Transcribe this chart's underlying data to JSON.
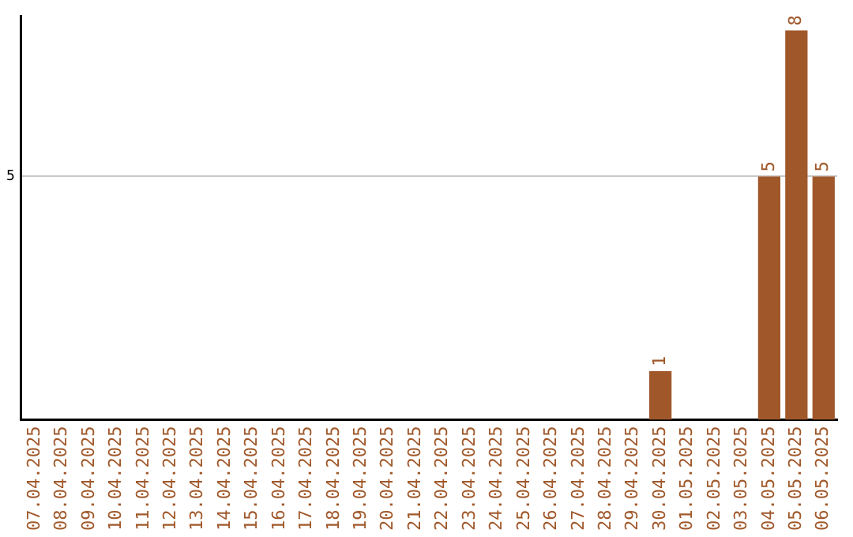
{
  "chart_data": {
    "type": "bar",
    "categories": [
      "07.04.2025",
      "08.04.2025",
      "09.04.2025",
      "10.04.2025",
      "11.04.2025",
      "12.04.2025",
      "13.04.2025",
      "14.04.2025",
      "15.04.2025",
      "16.04.2025",
      "17.04.2025",
      "18.04.2025",
      "19.04.2025",
      "20.04.2025",
      "21.04.2025",
      "22.04.2025",
      "23.04.2025",
      "24.04.2025",
      "25.04.2025",
      "26.04.2025",
      "27.04.2025",
      "28.04.2025",
      "29.04.2025",
      "30.04.2025",
      "01.05.2025",
      "02.05.2025",
      "03.05.2025",
      "04.05.2025",
      "05.05.2025",
      "06.05.2025"
    ],
    "values": [
      null,
      null,
      null,
      null,
      null,
      null,
      null,
      null,
      null,
      null,
      null,
      null,
      null,
      null,
      null,
      null,
      null,
      null,
      null,
      null,
      null,
      null,
      null,
      1,
      null,
      null,
      null,
      5,
      8,
      5
    ],
    "color": "#a0582a",
    "ylim": [
      0,
      8.3
    ],
    "yticks": [
      5
    ],
    "grid": "y",
    "data_labels": true,
    "legend": false
  }
}
